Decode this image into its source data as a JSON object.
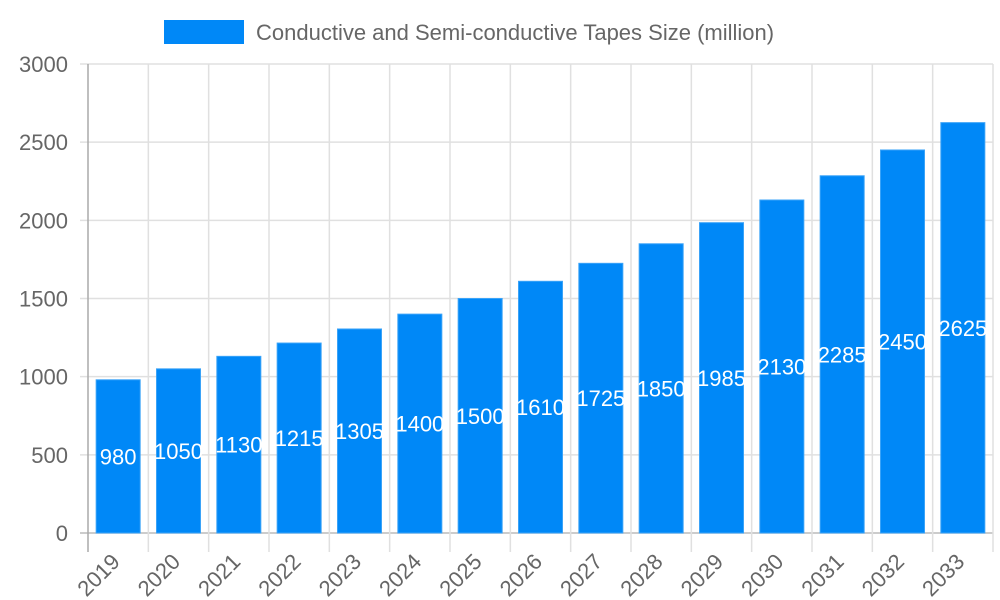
{
  "chart_data": {
    "type": "bar",
    "title": "",
    "xlabel": "",
    "ylabel": "",
    "legend": {
      "position": "top",
      "entries": [
        "Conductive and Semi-conductive Tapes Size (million)"
      ]
    },
    "categories": [
      "2019",
      "2020",
      "2021",
      "2022",
      "2023",
      "2024",
      "2025",
      "2026",
      "2027",
      "2028",
      "2029",
      "2030",
      "2031",
      "2032",
      "2033"
    ],
    "series": [
      {
        "name": "Conductive and Semi-conductive Tapes Size (million)",
        "values": [
          980,
          1050,
          1130,
          1215,
          1305,
          1400,
          1500,
          1610,
          1725,
          1850,
          1985,
          2130,
          2285,
          2450,
          2625
        ],
        "color": "#0088F7"
      }
    ],
    "ylim": [
      0,
      3000
    ],
    "yticks": [
      0,
      500,
      1000,
      1500,
      2000,
      2500,
      3000
    ],
    "grid": true,
    "data_labels": true
  }
}
